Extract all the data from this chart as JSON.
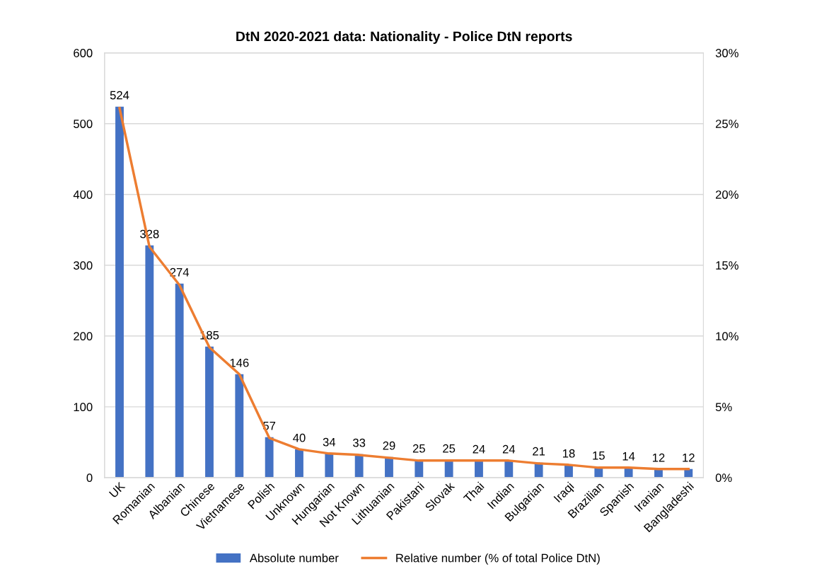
{
  "chart_data": {
    "type": "bar",
    "title": "DtN 2020-2021 data: Nationality - Police DtN reports",
    "categories": [
      "UK",
      "Romanian",
      "Albanian",
      "Chinese",
      "Vietnamese",
      "Polish",
      "Unknown",
      "Hungarian",
      "Not Known",
      "Lithuanian",
      "Pakistani",
      "Slovak",
      "Thai",
      "Indian",
      "Bulgarian",
      "Iraqi",
      "Brazilian",
      "Spanish",
      "Iranian",
      "Bangladeshi"
    ],
    "series": [
      {
        "name": "Absolute number",
        "color": "#4472c4",
        "values": [
          524,
          328,
          274,
          185,
          146,
          57,
          40,
          34,
          33,
          29,
          25,
          25,
          24,
          24,
          21,
          18,
          15,
          14,
          12,
          12
        ],
        "value_labels": [
          "524",
          "328",
          "274",
          "185",
          "146",
          "57",
          "40",
          "34",
          "33",
          "29",
          "25",
          "25",
          "24",
          "24",
          "21",
          "18",
          "15",
          "14",
          "12",
          "12"
        ]
      },
      {
        "name": "Relative number (% of total Police DtN)",
        "type": "line",
        "axis": "y2",
        "color": "#ed7d31",
        "values": [
          26.1,
          16.3,
          13.6,
          9.2,
          7.3,
          2.8,
          2.0,
          1.7,
          1.6,
          1.4,
          1.2,
          1.2,
          1.2,
          1.2,
          1.0,
          0.9,
          0.7,
          0.7,
          0.6,
          0.6
        ]
      }
    ],
    "ylim": [
      0,
      600
    ],
    "yticks": [
      0,
      100,
      200,
      300,
      400,
      500,
      600
    ],
    "y2lim": [
      0,
      30
    ],
    "y2ticks": [
      {
        "value": 0,
        "label": "0%"
      },
      {
        "value": 5,
        "label": "5%"
      },
      {
        "value": 10,
        "label": "10%"
      },
      {
        "value": 15,
        "label": "15%"
      },
      {
        "value": 20,
        "label": "20%"
      },
      {
        "value": 25,
        "label": "25%"
      },
      {
        "value": 30,
        "label": "30%"
      }
    ],
    "grid": "y",
    "legend": "bottom",
    "marker": "none",
    "line_style": "solid"
  }
}
